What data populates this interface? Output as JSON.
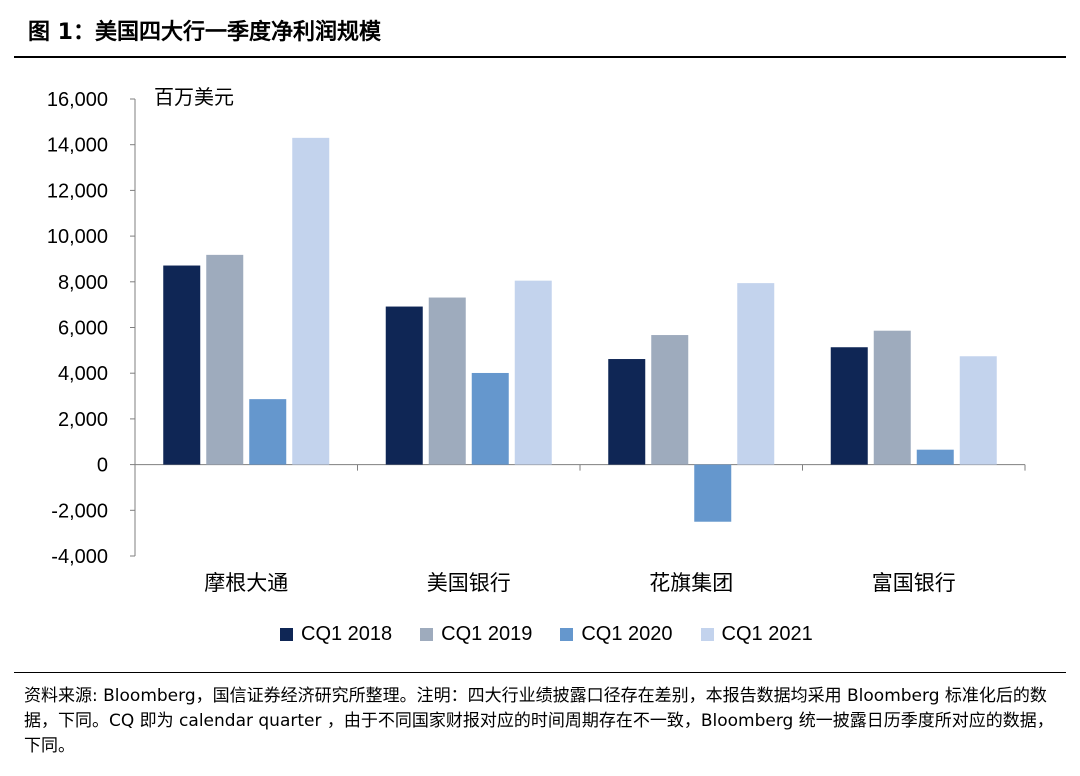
{
  "figure": {
    "title": "图 1：美国四大行一季度净利润规模",
    "note": "资料来源: Bloomberg，国信证券经济研究所整理。注明：四大行业绩披露口径存在差别，本报告数据均采用 Bloomberg 标准化后的数据，下同。CQ 即为 calendar quarter ，由于不同国家财报对应的时间周期存在不一致，Bloomberg 统一披露日历季度所对应的数据，下同。"
  },
  "chart_data": {
    "type": "bar",
    "unit_label": "百万美元",
    "categories": [
      "摩根大通",
      "美国银行",
      "花旗集团",
      "富国银行"
    ],
    "series": [
      {
        "name": "CQ1 2018",
        "color": "#0f2655",
        "values": [
          8712,
          6917,
          4620,
          5136
        ]
      },
      {
        "name": "CQ1 2019",
        "color": "#9eabbd",
        "values": [
          9179,
          7311,
          5670,
          5860
        ]
      },
      {
        "name": "CQ1 2020",
        "color": "#6597cd",
        "values": [
          2865,
          4010,
          -2500,
          653
        ]
      },
      {
        "name": "CQ1 2021",
        "color": "#c3d3ed",
        "values": [
          14300,
          8050,
          7942,
          4742
        ]
      }
    ],
    "ylim": [
      -4000,
      16000
    ],
    "yticks": [
      -4000,
      -2000,
      0,
      2000,
      4000,
      6000,
      8000,
      10000,
      12000,
      14000,
      16000
    ],
    "ytick_labels": [
      "-4,000",
      "-2,000",
      "0",
      "2,000",
      "4,000",
      "6,000",
      "8,000",
      "10,000",
      "12,000",
      "14,000",
      "16,000"
    ],
    "legend_position": "bottom",
    "grid": false
  }
}
